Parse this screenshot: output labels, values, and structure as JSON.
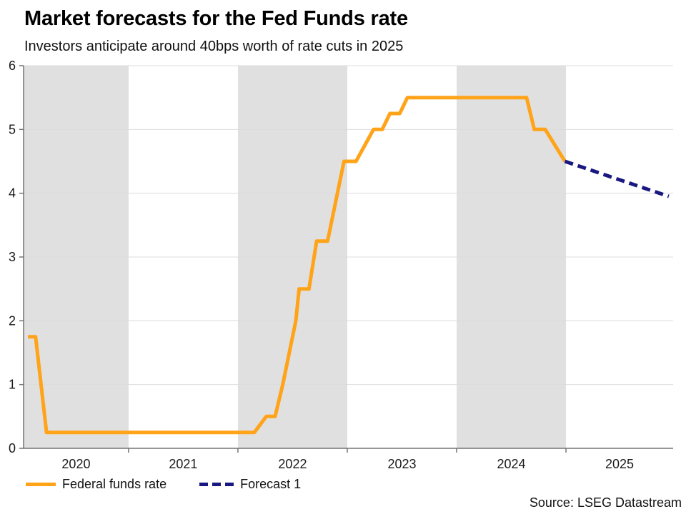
{
  "header": {
    "title": "Market forecasts for the Fed Funds rate",
    "subtitle": "Investors anticipate around 40bps worth of rate cuts in 2025"
  },
  "legend": {
    "items": [
      {
        "label": "Federal funds rate",
        "color": "#FFA318",
        "line_style": "solid"
      },
      {
        "label": "Forecast 1",
        "color": "#181880",
        "line_style": "dashed"
      }
    ]
  },
  "source": {
    "text": "Source: LSEG Datastream"
  },
  "colors": {
    "band_gray": "#E0E0E0",
    "gridline": "#DCDCDC",
    "axis": "#737373",
    "tick_text": "#1a1a1a"
  },
  "chart_data": {
    "type": "line",
    "title": "Market forecasts for the Fed Funds rate",
    "subtitle": "Investors anticipate around 40bps worth of rate cuts in 2025",
    "xlabel": "",
    "ylabel": "",
    "y_unit": "percent",
    "xlim": [
      2020.04,
      2025.98
    ],
    "ylim": [
      0,
      6
    ],
    "grid": "horizontal",
    "y_ticks": [
      0,
      1,
      2,
      3,
      4,
      5,
      6
    ],
    "x_tick_marks": [
      2021,
      2022,
      2023,
      2024,
      2025
    ],
    "x_tick_labels": [
      {
        "label": "2020",
        "x": 2020.52
      },
      {
        "label": "2021",
        "x": 2021.5
      },
      {
        "label": "2022",
        "x": 2022.5
      },
      {
        "label": "2023",
        "x": 2023.5
      },
      {
        "label": "2024",
        "x": 2024.5
      },
      {
        "label": "2025",
        "x": 2025.49
      }
    ],
    "shaded_bands": {
      "color": "#E0E0E0",
      "ranges": [
        [
          2020.04,
          2021
        ],
        [
          2022,
          2023
        ],
        [
          2024,
          2025
        ]
      ]
    },
    "legend_position": "bottom-left",
    "series": [
      {
        "name": "Federal funds rate",
        "color": "#FFA318",
        "style": "solid",
        "width": 5,
        "points": [
          [
            2020.08,
            1.75
          ],
          [
            2020.15,
            1.75
          ],
          [
            2020.25,
            0.25
          ],
          [
            2022.15,
            0.25
          ],
          [
            2022.26,
            0.5
          ],
          [
            2022.34,
            0.5
          ],
          [
            2022.41,
            1.0
          ],
          [
            2022.53,
            2.0
          ],
          [
            2022.56,
            2.5
          ],
          [
            2022.65,
            2.5
          ],
          [
            2022.72,
            3.25
          ],
          [
            2022.82,
            3.25
          ],
          [
            2022.97,
            4.5
          ],
          [
            2023.08,
            4.5
          ],
          [
            2023.24,
            5.0
          ],
          [
            2023.32,
            5.0
          ],
          [
            2023.39,
            5.25
          ],
          [
            2023.48,
            5.25
          ],
          [
            2023.55,
            5.5
          ],
          [
            2024.64,
            5.5
          ],
          [
            2024.71,
            5.0
          ],
          [
            2024.81,
            5.0
          ],
          [
            2024.99,
            4.5
          ]
        ]
      },
      {
        "name": "Forecast 1",
        "color": "#181880",
        "style": "dashed",
        "width": 5,
        "points": [
          [
            2024.99,
            4.5
          ],
          [
            2025.94,
            3.95
          ]
        ]
      }
    ]
  }
}
